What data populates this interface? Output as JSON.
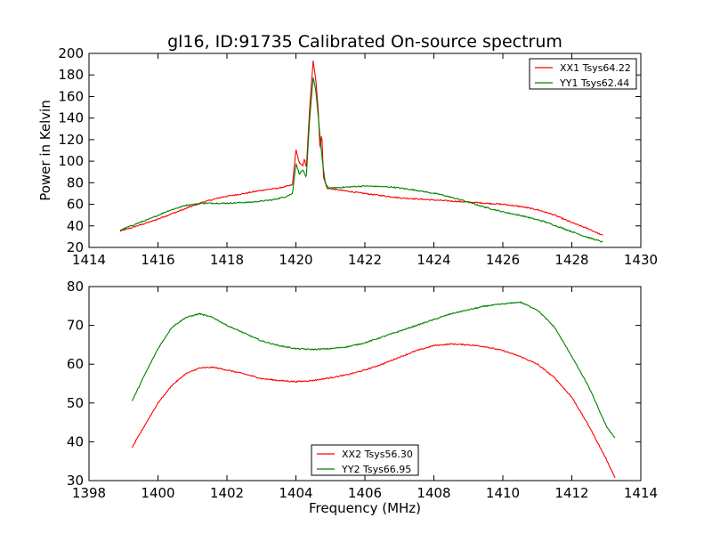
{
  "chart_data": [
    {
      "type": "line",
      "title": "gl16, ID:91735 Calibrated On-source spectrum",
      "xlabel": "",
      "ylabel": "Power in Kelvin",
      "xlim": [
        1414,
        1430
      ],
      "ylim": [
        20,
        200
      ],
      "xticks": [
        1414,
        1416,
        1418,
        1420,
        1422,
        1424,
        1426,
        1428,
        1430
      ],
      "yticks": [
        20,
        40,
        60,
        80,
        100,
        120,
        140,
        160,
        180,
        200
      ],
      "legend_position": "top-right",
      "grid": false,
      "series": [
        {
          "name": "XX1 Tsys64.22",
          "color": "#ff0000",
          "points": [
            [
              1414.9,
              35
            ],
            [
              1415.3,
              39
            ],
            [
              1415.8,
              44
            ],
            [
              1416.3,
              50
            ],
            [
              1416.8,
              56
            ],
            [
              1417.3,
              62
            ],
            [
              1417.9,
              67
            ],
            [
              1418.5,
              70
            ],
            [
              1419.0,
              73
            ],
            [
              1419.5,
              75
            ],
            [
              1419.9,
              78
            ],
            [
              1420.0,
              111
            ],
            [
              1420.1,
              98
            ],
            [
              1420.2,
              96
            ],
            [
              1420.25,
              103
            ],
            [
              1420.3,
              92
            ],
            [
              1420.4,
              150
            ],
            [
              1420.5,
              193
            ],
            [
              1420.58,
              175
            ],
            [
              1420.65,
              145
            ],
            [
              1420.7,
              110
            ],
            [
              1420.75,
              127
            ],
            [
              1420.8,
              85
            ],
            [
              1420.9,
              75
            ],
            [
              1421.3,
              73
            ],
            [
              1422.0,
              70
            ],
            [
              1423.0,
              66
            ],
            [
              1424.0,
              64
            ],
            [
              1425.0,
              62
            ],
            [
              1426.0,
              60
            ],
            [
              1426.5,
              58
            ],
            [
              1427.0,
              55
            ],
            [
              1427.5,
              50
            ],
            [
              1428.0,
              43
            ],
            [
              1428.5,
              37
            ],
            [
              1428.9,
              31
            ]
          ]
        },
        {
          "name": "YY1 Tsys62.44",
          "color": "#008000",
          "points": [
            [
              1414.9,
              36
            ],
            [
              1415.3,
              41
            ],
            [
              1415.8,
              47
            ],
            [
              1416.3,
              54
            ],
            [
              1416.8,
              59
            ],
            [
              1417.3,
              61
            ],
            [
              1418.0,
              61
            ],
            [
              1418.7,
              62
            ],
            [
              1419.3,
              64
            ],
            [
              1419.7,
              67
            ],
            [
              1419.9,
              70
            ],
            [
              1420.0,
              98
            ],
            [
              1420.1,
              88
            ],
            [
              1420.2,
              92
            ],
            [
              1420.3,
              84
            ],
            [
              1420.4,
              140
            ],
            [
              1420.5,
              178
            ],
            [
              1420.58,
              165
            ],
            [
              1420.65,
              140
            ],
            [
              1420.72,
              115
            ],
            [
              1420.78,
              97
            ],
            [
              1420.85,
              80
            ],
            [
              1420.95,
              75
            ],
            [
              1421.5,
              76
            ],
            [
              1422.0,
              77
            ],
            [
              1422.8,
              76
            ],
            [
              1423.5,
              73
            ],
            [
              1424.2,
              69
            ],
            [
              1424.8,
              64
            ],
            [
              1425.4,
              58
            ],
            [
              1426.0,
              53
            ],
            [
              1426.6,
              49
            ],
            [
              1427.2,
              44
            ],
            [
              1427.8,
              37
            ],
            [
              1428.4,
              30
            ],
            [
              1428.9,
              25
            ]
          ]
        }
      ]
    },
    {
      "type": "line",
      "title": "",
      "xlabel": "Frequency (MHz)",
      "ylabel": "",
      "xlim": [
        1398,
        1414
      ],
      "ylim": [
        30,
        80
      ],
      "xticks": [
        1398,
        1400,
        1402,
        1404,
        1406,
        1408,
        1410,
        1412,
        1414
      ],
      "yticks": [
        30,
        40,
        50,
        60,
        70,
        80
      ],
      "legend_position": "bottom-center",
      "grid": false,
      "series": [
        {
          "name": "XX2 Tsys56.30",
          "color": "#ff0000",
          "points": [
            [
              1399.25,
              38.5
            ],
            [
              1399.6,
              44
            ],
            [
              1400.0,
              50
            ],
            [
              1400.4,
              54.5
            ],
            [
              1400.8,
              57.5
            ],
            [
              1401.2,
              59
            ],
            [
              1401.6,
              59.2
            ],
            [
              1402.0,
              58.5
            ],
            [
              1402.5,
              57.5
            ],
            [
              1403.0,
              56.3
            ],
            [
              1403.5,
              55.8
            ],
            [
              1404.0,
              55.5
            ],
            [
              1404.5,
              55.8
            ],
            [
              1405.0,
              56.5
            ],
            [
              1405.5,
              57.3
            ],
            [
              1406.0,
              58.5
            ],
            [
              1406.5,
              60
            ],
            [
              1407.0,
              61.8
            ],
            [
              1407.5,
              63.5
            ],
            [
              1408.0,
              64.8
            ],
            [
              1408.5,
              65.2
            ],
            [
              1409.0,
              65
            ],
            [
              1409.5,
              64.5
            ],
            [
              1410.0,
              63.5
            ],
            [
              1410.5,
              62
            ],
            [
              1411.0,
              60
            ],
            [
              1411.5,
              56.5
            ],
            [
              1412.0,
              51.5
            ],
            [
              1412.5,
              44
            ],
            [
              1413.0,
              35.5
            ],
            [
              1413.25,
              30.8
            ]
          ]
        },
        {
          "name": "YY2 Tsys66.95",
          "color": "#008000",
          "points": [
            [
              1399.25,
              50.5
            ],
            [
              1399.6,
              57
            ],
            [
              1400.0,
              64
            ],
            [
              1400.4,
              69.5
            ],
            [
              1400.8,
              72
            ],
            [
              1401.2,
              73
            ],
            [
              1401.6,
              72
            ],
            [
              1402.0,
              70
            ],
            [
              1402.5,
              68
            ],
            [
              1403.0,
              66
            ],
            [
              1403.5,
              64.8
            ],
            [
              1404.0,
              64
            ],
            [
              1404.5,
              63.8
            ],
            [
              1405.0,
              64
            ],
            [
              1405.5,
              64.5
            ],
            [
              1406.0,
              65.5
            ],
            [
              1406.5,
              67
            ],
            [
              1407.0,
              68.5
            ],
            [
              1407.5,
              70
            ],
            [
              1408.0,
              71.5
            ],
            [
              1408.5,
              73
            ],
            [
              1409.0,
              74
            ],
            [
              1409.5,
              75
            ],
            [
              1410.0,
              75.5
            ],
            [
              1410.5,
              76
            ],
            [
              1411.0,
              74
            ],
            [
              1411.5,
              69.5
            ],
            [
              1412.0,
              62
            ],
            [
              1412.5,
              54
            ],
            [
              1413.0,
              44
            ],
            [
              1413.25,
              41
            ]
          ]
        }
      ]
    }
  ]
}
